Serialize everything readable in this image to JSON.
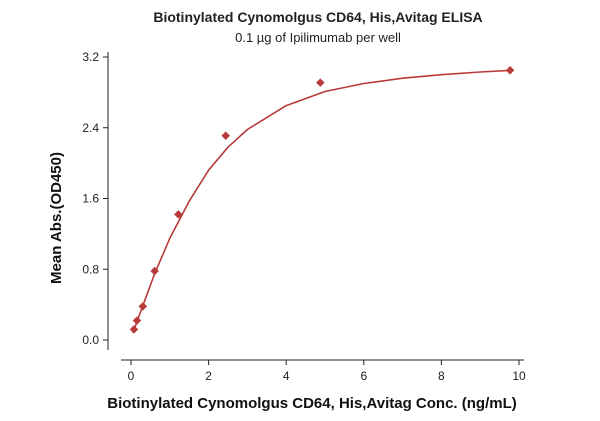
{
  "chart_data": {
    "type": "scatter",
    "title": "Biotinylated Cynomolgus CD64, His,Avitag ELISA",
    "subtitle": "0.1 µg of Ipilimumab per well",
    "xlabel": "Biotinylated Cynomolgus CD64, His,Avitag Conc. (ng/mL)",
    "ylabel": "Mean Abs.(OD450)",
    "xlim": [
      0,
      10
    ],
    "ylim": [
      0,
      3.2
    ],
    "xticks": [
      0,
      2,
      4,
      6,
      8,
      10
    ],
    "xtick_labels": [
      "0",
      "2",
      "4",
      "6",
      "8",
      "10"
    ],
    "yticks": [
      0,
      0.8,
      1.6,
      2.4,
      3.2
    ],
    "ytick_labels": [
      "0.0",
      "0.8",
      "1.6",
      "2.4",
      "3.2"
    ],
    "grid": false,
    "series": [
      {
        "name": "data",
        "marker": "diamond",
        "color": "#b83a3a",
        "x": [
          0.076,
          0.153,
          0.305,
          0.61,
          1.22,
          2.44,
          4.88,
          9.77
        ],
        "y": [
          0.12,
          0.22,
          0.38,
          0.78,
          1.42,
          2.31,
          2.91,
          3.05
        ]
      }
    ],
    "fit_curve": {
      "name": "fit",
      "color": "#b83a3a",
      "x": [
        0.05,
        0.3,
        0.6,
        1.0,
        1.5,
        2.0,
        2.5,
        3.0,
        4.0,
        5.0,
        6.0,
        7.0,
        8.0,
        9.0,
        9.8
      ],
      "y": [
        0.08,
        0.38,
        0.74,
        1.15,
        1.57,
        1.92,
        2.18,
        2.38,
        2.65,
        2.81,
        2.9,
        2.96,
        3.0,
        3.03,
        3.05
      ]
    }
  }
}
